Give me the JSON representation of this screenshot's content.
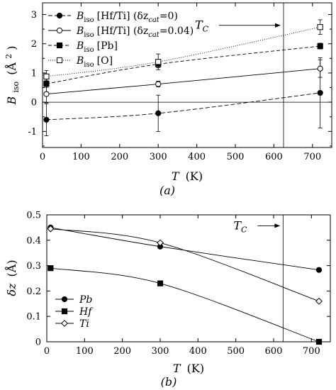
{
  "chart_data": [
    {
      "type": "line",
      "panel_label": "(a)",
      "xlabel_symbol": "T",
      "xlabel_unit": "(K)",
      "ylabel_symbol": "B",
      "ylabel_sub": "iso",
      "ylabel_unit": "(Å",
      "ylabel_unit_sup": "2",
      "ylabel_unit_close": ")",
      "xlim": [
        0,
        750
      ],
      "ylim": [
        -1.55,
        3.4
      ],
      "xticks": [
        0,
        100,
        200,
        300,
        400,
        500,
        600,
        700
      ],
      "yticks": [
        -1,
        0,
        1,
        2,
        3
      ],
      "zero_line": true,
      "vline": 625,
      "annotation": {
        "text": "T",
        "sub": "C",
        "x": 465,
        "y": 2.63
      },
      "legend": "top-left",
      "series": [
        {
          "name": "B",
          "label_sub": "iso",
          "label_tail": "[Hf/Ti] (δz",
          "label_tail_sub": "cat",
          "label_end": "=0)",
          "marker": "filled-circle",
          "dash": "6,3",
          "x": [
            10,
            300,
            720
          ],
          "y": [
            -0.6,
            -0.38,
            0.32
          ],
          "err": [
            0.55,
            0.62,
            1.2
          ]
        },
        {
          "name": "B",
          "label_sub": "iso",
          "label_tail": "[Hf/Ti] (δz",
          "label_tail_sub": "cat",
          "label_end": "=0.04)",
          "marker": "open-circle",
          "dash": "",
          "x": [
            10,
            300,
            720
          ],
          "y": [
            0.28,
            0.62,
            1.15
          ],
          "err": [
            0.3,
            0.1,
            0.3
          ]
        },
        {
          "name": "B",
          "label_sub": "iso",
          "label_tail": "[Pb]",
          "label_tail_sub": "",
          "label_end": "",
          "marker": "filled-square",
          "dash": "5,3",
          "x": [
            10,
            300,
            720
          ],
          "y": [
            0.63,
            1.3,
            1.92
          ],
          "err": [
            0.12,
            0.12,
            0.1
          ]
        },
        {
          "name": "B",
          "label_sub": "iso",
          "label_tail": "[O]",
          "label_tail_sub": "",
          "label_end": "",
          "marker": "open-square",
          "dash": "1,2",
          "x": [
            10,
            300,
            720
          ],
          "y": [
            0.88,
            1.38,
            2.57
          ],
          "err": [
            0.2,
            0.27,
            0.25
          ]
        }
      ]
    },
    {
      "type": "line",
      "panel_label": "(b)",
      "xlabel_symbol": "T",
      "xlabel_unit": "(K)",
      "ylabel_symbol": "δz",
      "ylabel_unit": "(Å)",
      "xlim": [
        0,
        750
      ],
      "ylim": [
        0,
        0.5
      ],
      "xticks": [
        0,
        100,
        200,
        300,
        400,
        500,
        600,
        700
      ],
      "yticks": [
        0,
        0.1,
        0.2,
        0.3,
        0.4,
        0.5
      ],
      "ytick_labels": [
        "0",
        "0.1",
        "0.2",
        "0.3",
        "0.4",
        "0.5"
      ],
      "vline": 625,
      "annotation": {
        "text": "T",
        "sub": "C",
        "x": 565,
        "y": 0.457
      },
      "legend": "bottom-left",
      "series": [
        {
          "name": "Pb",
          "marker": "filled-circle",
          "x": [
            10,
            300,
            720
          ],
          "y": [
            0.45,
            0.375,
            0.283
          ]
        },
        {
          "name": "Hf",
          "marker": "filled-square",
          "x": [
            10,
            300,
            720
          ],
          "y": [
            0.29,
            0.23,
            0.0
          ]
        },
        {
          "name": "Ti",
          "marker": "open-diamond",
          "x": [
            10,
            300,
            720
          ],
          "y": [
            0.445,
            0.39,
            0.16
          ]
        }
      ]
    }
  ]
}
